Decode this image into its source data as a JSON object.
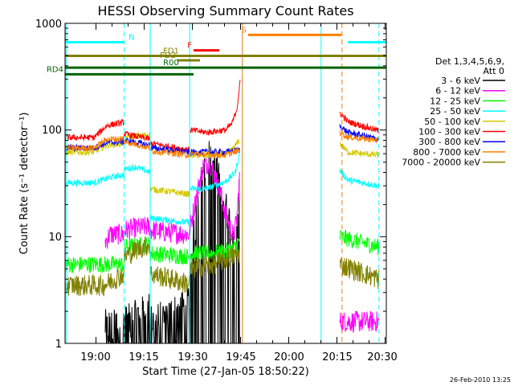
{
  "chart_data": {
    "type": "line",
    "title": "HESSI Observing Summary Count Rates",
    "xlabel": "Start Time (27-Jan-05 18:50:22)",
    "ylabel": "Count Rate (s⁻¹ detector⁻¹)",
    "y_scale": "log",
    "xlim_minutes": [
      0,
      100
    ],
    "ylim": [
      1,
      1000
    ],
    "x_ticks": [
      "19:00",
      "19:15",
      "19:30",
      "19:45",
      "20:00",
      "20:15",
      "20:30"
    ],
    "y_ticks": [
      "1",
      "10",
      "100",
      "1000"
    ],
    "footer_date": "26-Feb-2010 13:25",
    "legend": {
      "position": "right",
      "header_lines": [
        "Det 1,3,4,5,6,9,",
        "Att 0"
      ],
      "entries": [
        {
          "label": "3 - 6 keV",
          "color": "#000000"
        },
        {
          "label": "6 - 12 keV",
          "color": "#ff00ff"
        },
        {
          "label": "12 - 25 keV",
          "color": "#00ff00"
        },
        {
          "label": "25 - 50 keV",
          "color": "#00ffff"
        },
        {
          "label": "50 - 100 keV",
          "color": "#d4c800"
        },
        {
          "label": "100 - 300 keV",
          "color": "#ff0000"
        },
        {
          "label": "300 - 800 keV",
          "color": "#0000ff"
        },
        {
          "label": "800 - 7000 keV",
          "color": "#ff8000"
        },
        {
          "label": "7000 - 20000 keV",
          "color": "#808000"
        }
      ]
    },
    "flag_bars": [
      {
        "label": "N",
        "color": "#00ffff",
        "level": 665,
        "segments": [
          [
            0,
            18.5
          ],
          [
            88,
            100
          ]
        ]
      },
      {
        "label": "F",
        "color": "#ff0000",
        "level": 558,
        "segments": [
          [
            40,
            48
          ]
        ]
      },
      {
        "label": "S",
        "color": "#ff8000",
        "level": 780,
        "segments": [
          [
            57,
            86
          ]
        ]
      },
      {
        "label": "FD1",
        "color": "#808000",
        "level": 495,
        "segments": [
          [
            0,
            100
          ]
        ]
      },
      {
        "label": "FD2",
        "color": "#808000",
        "level": 450,
        "segments": [
          [
            35,
            42
          ]
        ]
      },
      {
        "label": "R00",
        "color": "#006400",
        "level": 384,
        "segments": [
          [
            0,
            100
          ]
        ]
      },
      {
        "label": "RD4",
        "color": "#006400",
        "level": 333,
        "segments": [
          [
            0,
            40
          ]
        ]
      }
    ],
    "vertical_lines": [
      {
        "x": 0.3,
        "color": "#00ffff",
        "style": "solid"
      },
      {
        "x": 18.4,
        "color": "#00ffff",
        "style": "dashed"
      },
      {
        "x": 26.5,
        "color": "#00ffff",
        "style": "solid"
      },
      {
        "x": 38.8,
        "color": "#00ffff",
        "style": "solid"
      },
      {
        "x": 55.2,
        "color": "#d08020",
        "style": "solid"
      },
      {
        "x": 79.7,
        "color": "#00ffff",
        "style": "solid"
      },
      {
        "x": 86.2,
        "color": "#ff8000",
        "style": "dashed"
      },
      {
        "x": 97.7,
        "color": "#00ffff",
        "style": "dashed"
      }
    ],
    "series": [
      {
        "name": "3 - 6 keV",
        "color": "#000000",
        "noise": 1.0,
        "segments": [
          {
            "x": [
              12.5,
              18.4
            ],
            "y": [
              1.5,
              1.5
            ]
          },
          {
            "x": [
              18.4,
              26.5
            ],
            "y": [
              1.6,
              2.2
            ]
          },
          {
            "x": [
              26.6,
              38.8
            ],
            "y": [
              1.6,
              2.4
            ]
          },
          {
            "x": [
              38.9,
              41,
              43,
              45,
              47,
              48.5,
              50,
              51.5,
              52.5,
              53.5,
              54.3
            ],
            "y": [
              5,
              20,
              40,
              60,
              45,
              30,
              20,
              13,
              10,
              12,
              30
            ]
          }
        ]
      },
      {
        "name": "6 - 12 keV",
        "color": "#ff00ff",
        "noise": 0.1,
        "segments": [
          {
            "x": [
              12.5,
              14,
              18.4
            ],
            "y": [
              9,
              10.5,
              10.5
            ]
          },
          {
            "x": [
              18.4,
              22,
              26.5
            ],
            "y": [
              11.5,
              12,
              12.5
            ]
          },
          {
            "x": [
              26.6,
              32,
              38.8
            ],
            "y": [
              11.5,
              11,
              10.5
            ]
          },
          {
            "x": [
              38.9,
              41,
              43,
              45,
              47,
              48.5,
              50,
              51.5,
              52.5,
              53.5,
              54.3
            ],
            "y": [
              12,
              25,
              45,
              50,
              35,
              25,
              16,
              12,
              10,
              15,
              35
            ]
          },
          {
            "x": [
              85.5,
              97.7
            ],
            "y": [
              1.6,
              1.6
            ]
          }
        ]
      },
      {
        "name": "12 - 25 keV",
        "color": "#00ff00",
        "noise": 0.08,
        "segments": [
          {
            "x": [
              0,
              18.4
            ],
            "y": [
              5.5,
              5.5
            ]
          },
          {
            "x": [
              18.4,
              26.5
            ],
            "y": [
              8,
              8.5
            ]
          },
          {
            "x": [
              26.6,
              38.8
            ],
            "y": [
              7,
              6.5
            ]
          },
          {
            "x": [
              38.9,
              46,
              52,
              54.3
            ],
            "y": [
              7,
              7,
              7.5,
              9
            ]
          },
          {
            "x": [
              85.5,
              97.7
            ],
            "y": [
              10,
              8
            ]
          }
        ]
      },
      {
        "name": "25 - 50 keV",
        "color": "#00ffff",
        "noise": 0.03,
        "segments": [
          {
            "x": [
              0,
              9,
              14,
              18.4
            ],
            "y": [
              32,
              32,
              36,
              38
            ]
          },
          {
            "x": [
              18.4,
              22,
              26.5
            ],
            "y": [
              43,
              45,
              40
            ]
          },
          {
            "x": [
              26.6,
              38.8
            ],
            "y": [
              15,
              13.5
            ]
          },
          {
            "x": [
              38.9,
              44,
              50,
              53,
              54.3
            ],
            "y": [
              28,
              28,
              33,
              40,
              60
            ]
          },
          {
            "x": [
              85.5,
              88,
              97.7
            ],
            "y": [
              42,
              34,
              30
            ]
          }
        ]
      },
      {
        "name": "50 - 100 keV",
        "color": "#d4c800",
        "noise": 0.03,
        "segments": [
          {
            "x": [
              0,
              9,
              13,
              18.4
            ],
            "y": [
              62,
              62,
              72,
              75
            ]
          },
          {
            "x": [
              18.4,
              22,
              26.5
            ],
            "y": [
              85,
              88,
              90
            ]
          },
          {
            "x": [
              26.6,
              38.8
            ],
            "y": [
              28,
              25
            ]
          },
          {
            "x": [
              38.9,
              44,
              50,
              52,
              54.3
            ],
            "y": [
              58,
              58,
              60,
              65,
              80
            ]
          },
          {
            "x": [
              85.5,
              88,
              97.7
            ],
            "y": [
              75,
              62,
              58
            ]
          }
        ]
      },
      {
        "name": "100 - 300 keV",
        "color": "#ff0000",
        "noise": 0.03,
        "segments": [
          {
            "x": [
              0,
              9,
              13,
              18.4
            ],
            "y": [
              85,
              85,
              110,
              118
            ]
          },
          {
            "x": [
              18.4,
              26.5
            ],
            "y": [
              92,
              82
            ]
          },
          {
            "x": [
              26.6,
              38.8
            ],
            "y": [
              75,
              65
            ]
          },
          {
            "x": [
              38.9,
              44,
              50,
              52,
              53.5,
              54.5
            ],
            "y": [
              100,
              95,
              100,
              115,
              160,
              280
            ]
          },
          {
            "x": [
              85.5,
              88,
              97.7
            ],
            "y": [
              145,
              120,
              98
            ]
          }
        ]
      },
      {
        "name": "300 - 800 keV",
        "color": "#0000ff",
        "noise": 0.03,
        "segments": [
          {
            "x": [
              0,
              9,
              13,
              18.4
            ],
            "y": [
              68,
              68,
              76,
              78
            ]
          },
          {
            "x": [
              18.4,
              26.5
            ],
            "y": [
              80,
              72
            ]
          },
          {
            "x": [
              26.6,
              38.8
            ],
            "y": [
              68,
              62
            ]
          },
          {
            "x": [
              38.9,
              50,
              54.3
            ],
            "y": [
              62,
              62,
              65
            ]
          },
          {
            "x": [
              85.5,
              88,
              97.7
            ],
            "y": [
              110,
              95,
              82
            ]
          }
        ]
      },
      {
        "name": "800 - 7000 keV",
        "color": "#ff8000",
        "noise": 0.03,
        "segments": [
          {
            "x": [
              0,
              9,
              13,
              18.4
            ],
            "y": [
              68,
              68,
              82,
              83
            ]
          },
          {
            "x": [
              18.4,
              26.5
            ],
            "y": [
              78,
              68
            ]
          },
          {
            "x": [
              26.6,
              38.8
            ],
            "y": [
              64,
              58
            ]
          },
          {
            "x": [
              38.9,
              50,
              54.3
            ],
            "y": [
              60,
              58,
              65
            ]
          },
          {
            "x": [
              85.5,
              88,
              97.7
            ],
            "y": [
              95,
              86,
              80
            ]
          }
        ]
      },
      {
        "name": "7000 - 20000 keV",
        "color": "#808000",
        "noise": 0.1,
        "segments": [
          {
            "x": [
              0,
              12,
              18.4
            ],
            "y": [
              3.5,
              3.5,
              4.5
            ]
          },
          {
            "x": [
              18.4,
              22,
              26.5
            ],
            "y": [
              6.5,
              7.5,
              8.5
            ]
          },
          {
            "x": [
              26.6,
              38.8
            ],
            "y": [
              4.5,
              3.6
            ]
          },
          {
            "x": [
              38.9,
              46,
              54.3
            ],
            "y": [
              5,
              5.5,
              7
            ]
          },
          {
            "x": [
              85.5,
              97.7
            ],
            "y": [
              5.5,
              4
            ]
          }
        ]
      }
    ]
  }
}
